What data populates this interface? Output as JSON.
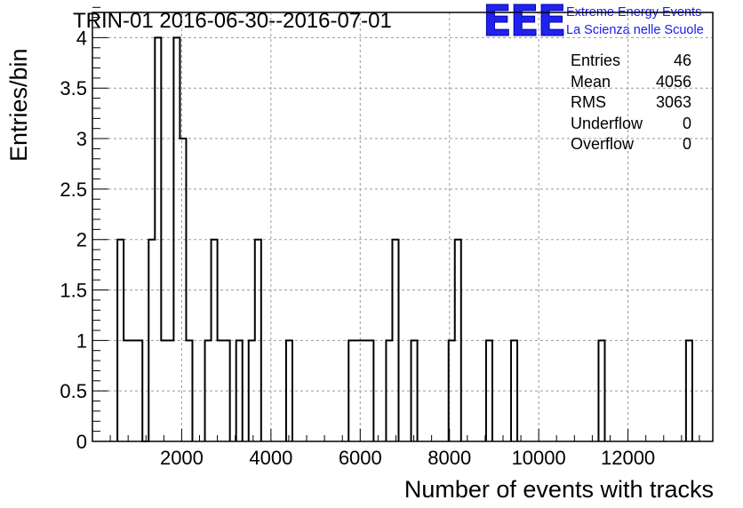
{
  "header": {
    "title": "TRIN-01 2016-06-30--2016-07-01"
  },
  "logo": {
    "mark": "EEE",
    "line1": "Extreme Energy Events",
    "line2": "La Scienza nelle Scuole",
    "color": "#1a1aee"
  },
  "stats": [
    {
      "name": "Entries",
      "value": "46"
    },
    {
      "name": "Mean",
      "value": "4056"
    },
    {
      "name": "RMS",
      "value": "3063"
    },
    {
      "name": "Underflow",
      "value": "0"
    },
    {
      "name": "Overflow",
      "value": "0"
    }
  ],
  "chart_data": {
    "type": "bar",
    "style": "step-histogram",
    "title": "TRIN-01 2016-06-30--2016-07-01",
    "xlabel": "Number of events with tracks",
    "ylabel": "Entries/bin",
    "xlim": [
      0,
      13900
    ],
    "ylim": [
      0,
      4.25
    ],
    "bin_width": 140,
    "x_ticks": [
      2000,
      4000,
      6000,
      8000,
      10000,
      12000
    ],
    "y_ticks": [
      0,
      0.5,
      1,
      1.5,
      2,
      2.5,
      3,
      3.5,
      4
    ],
    "y_tick_labels": [
      "0",
      "0.5",
      "1",
      "1.5",
      "2",
      "2.5",
      "3",
      "3.5",
      "4"
    ],
    "grid": true,
    "bins": [
      {
        "x": 560,
        "y": 2
      },
      {
        "x": 700,
        "y": 1
      },
      {
        "x": 840,
        "y": 1
      },
      {
        "x": 980,
        "y": 1
      },
      {
        "x": 1120,
        "y": 0
      },
      {
        "x": 1260,
        "y": 2
      },
      {
        "x": 1400,
        "y": 4
      },
      {
        "x": 1540,
        "y": 1
      },
      {
        "x": 1680,
        "y": 1
      },
      {
        "x": 1820,
        "y": 4
      },
      {
        "x": 1960,
        "y": 3
      },
      {
        "x": 2100,
        "y": 1
      },
      {
        "x": 2520,
        "y": 1
      },
      {
        "x": 2660,
        "y": 2
      },
      {
        "x": 2800,
        "y": 1
      },
      {
        "x": 2940,
        "y": 1
      },
      {
        "x": 3220,
        "y": 1
      },
      {
        "x": 3500,
        "y": 1
      },
      {
        "x": 3640,
        "y": 2
      },
      {
        "x": 4340,
        "y": 1
      },
      {
        "x": 5740,
        "y": 1
      },
      {
        "x": 5880,
        "y": 1
      },
      {
        "x": 6020,
        "y": 1
      },
      {
        "x": 6160,
        "y": 1
      },
      {
        "x": 6580,
        "y": 1
      },
      {
        "x": 6720,
        "y": 2
      },
      {
        "x": 7140,
        "y": 1
      },
      {
        "x": 7980,
        "y": 1
      },
      {
        "x": 8120,
        "y": 2
      },
      {
        "x": 8820,
        "y": 1
      },
      {
        "x": 9380,
        "y": 1
      },
      {
        "x": 11340,
        "y": 1
      },
      {
        "x": 13300,
        "y": 1
      }
    ]
  }
}
